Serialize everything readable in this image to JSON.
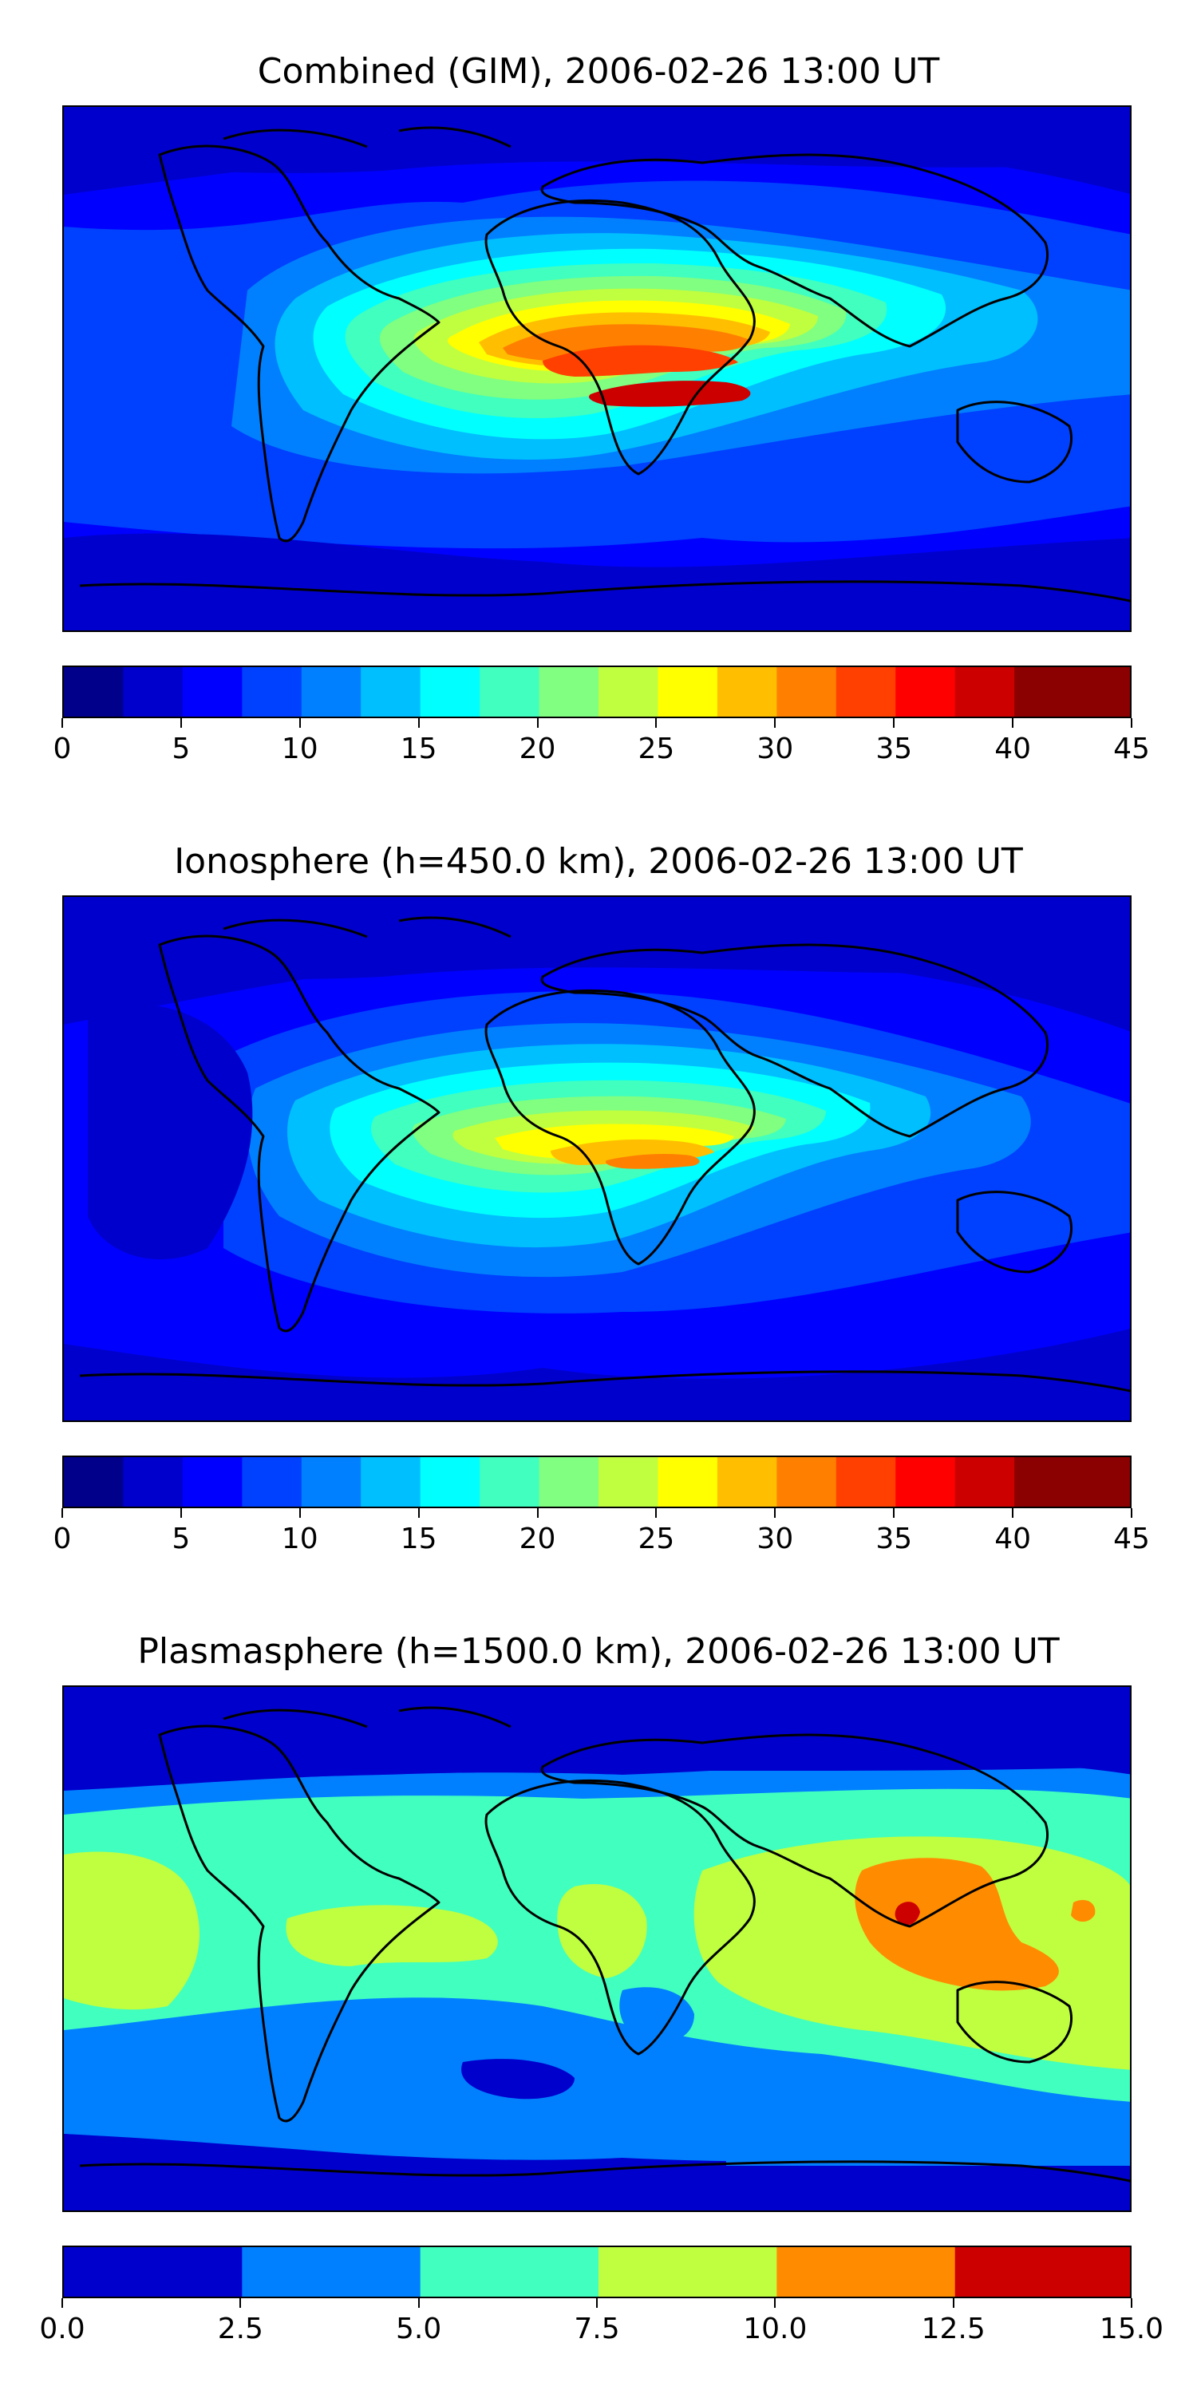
{
  "chart_data": [
    {
      "type": "heatmap",
      "title": "Combined (GIM), 2006-02-26 13:00 UT",
      "projection": "equirectangular world map with coastlines",
      "colorbar": {
        "ticks": [
          "0",
          "5",
          "10",
          "15",
          "20",
          "25",
          "30",
          "35",
          "40",
          "45"
        ],
        "range": [
          0,
          45
        ],
        "levels": [
          0,
          2.5,
          5,
          7.5,
          10,
          12.5,
          15,
          17.5,
          20,
          22.5,
          25,
          27.5,
          30,
          32.5,
          35,
          37.5,
          40,
          42.5,
          45
        ],
        "colormap": "jet"
      },
      "field_summary": {
        "maximum_approx": 40,
        "maximum_region": "central and southern Africa, equatorial",
        "background_approx": 5,
        "polar_regions_approx": 2.5
      }
    },
    {
      "type": "heatmap",
      "title": "Ionosphere  (h=450.0 km), 2006-02-26 13:00 UT",
      "projection": "equirectangular world map with coastlines",
      "colorbar": {
        "ticks": [
          "0",
          "5",
          "10",
          "15",
          "20",
          "25",
          "30",
          "35",
          "40",
          "45"
        ],
        "range": [
          0,
          45
        ],
        "levels": [
          0,
          2.5,
          5,
          7.5,
          10,
          12.5,
          15,
          17.5,
          20,
          22.5,
          25,
          27.5,
          30,
          32.5,
          35,
          37.5,
          40,
          42.5,
          45
        ],
        "colormap": "jet"
      },
      "field_summary": {
        "maximum_approx": 35,
        "maximum_region": "southern Africa, equatorial",
        "background_approx": 5,
        "polar_regions_approx": 2.5
      }
    },
    {
      "type": "heatmap",
      "title": "Plasmasphere (h=1500.0 km), 2006-02-26 13:00 UT",
      "projection": "equirectangular world map with coastlines",
      "colorbar": {
        "ticks": [
          "0.0",
          "2.5",
          "5.0",
          "7.5",
          "10.0",
          "12.5",
          "15.0"
        ],
        "range": [
          0,
          15
        ],
        "levels": [
          0,
          2.5,
          5,
          7.5,
          10,
          12.5,
          15
        ],
        "colormap": "jet"
      },
      "field_summary": {
        "maximum_approx": 12.5,
        "maximum_region": "Southeast Asia / Indonesia",
        "background_approx": 7.5,
        "polar_regions_approx": 0
      }
    }
  ],
  "colors": {
    "jet18": [
      "#00008b",
      "#0000cd",
      "#0000ff",
      "#0040ff",
      "#0080ff",
      "#00bfff",
      "#00ffff",
      "#40ffbf",
      "#80ff80",
      "#bfff40",
      "#ffff00",
      "#ffbf00",
      "#ff8000",
      "#ff4000",
      "#ff0000",
      "#cd0000",
      "#8b0000",
      "#8b0000"
    ],
    "jet6": [
      "#0000cd",
      "#0080ff",
      "#40ffbf",
      "#bfff40",
      "#ff8c00",
      "#cd0000"
    ],
    "coastline": "#000000"
  }
}
